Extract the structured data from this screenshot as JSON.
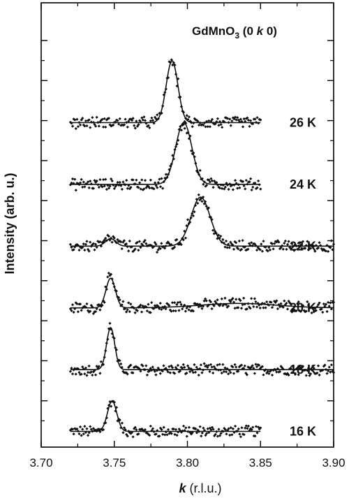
{
  "chart_data": {
    "type": "scatter",
    "title_parts": {
      "compound": "GdMnO",
      "subscript": "3",
      "index_open": " (0 ",
      "index_k": "k",
      "index_close": " 0)"
    },
    "xlabel_parts": {
      "var": "k",
      "unit": " (r.l.u.)"
    },
    "ylabel": "Intensity (arb. u.)",
    "xlim": [
      3.7,
      3.9
    ],
    "x_ticks": [
      "3.70",
      "3.75",
      "3.80",
      "3.85",
      "3.90"
    ],
    "x_tick_values": [
      3.7,
      3.75,
      3.8,
      3.85,
      3.9
    ],
    "y_tick_labels_shown": false,
    "y_major_ticks": 10,
    "grid": false,
    "legend": "none",
    "series": [
      {
        "name": "16 K",
        "offset": 0,
        "x_range": [
          3.72,
          3.85
        ],
        "background": 0.0,
        "peaks": [
          {
            "center": 3.7485,
            "height": 1.23,
            "width": 0.0032
          }
        ]
      },
      {
        "name": "18 K",
        "offset": 1,
        "x_range": [
          3.72,
          3.9
        ],
        "background": 0.0,
        "peaks": [
          {
            "center": 3.7475,
            "height": 1.7,
            "width": 0.0028
          }
        ]
      },
      {
        "name": "20 K",
        "offset": 2,
        "x_range": [
          3.72,
          3.9
        ],
        "background": 0.0,
        "peaks": [
          {
            "center": 3.7475,
            "height": 1.2,
            "width": 0.0032
          },
          {
            "center": 3.835,
            "height": 0.18,
            "width": 0.026
          }
        ]
      },
      {
        "name": "22 K",
        "offset": 3,
        "x_range": [
          3.72,
          3.9
        ],
        "background": 0.0,
        "peaks": [
          {
            "center": 3.7475,
            "height": 0.3,
            "width": 0.0035
          },
          {
            "center": 3.809,
            "height": 1.98,
            "width": 0.0065
          }
        ]
      },
      {
        "name": "24 K",
        "offset": 4,
        "x_range": [
          3.72,
          3.85
        ],
        "background": 0.0,
        "peaks": [
          {
            "center": 3.7975,
            "height": 2.5,
            "width": 0.0055
          }
        ]
      },
      {
        "name": "26 K",
        "offset": 5,
        "x_range": [
          3.72,
          3.85
        ],
        "background": 0.0,
        "peaks": [
          {
            "center": 3.7895,
            "height": 2.5,
            "width": 0.004
          }
        ]
      }
    ],
    "styles": {
      "point_color": "#111111",
      "line_color": "#111111",
      "axis_color": "#000000"
    }
  }
}
